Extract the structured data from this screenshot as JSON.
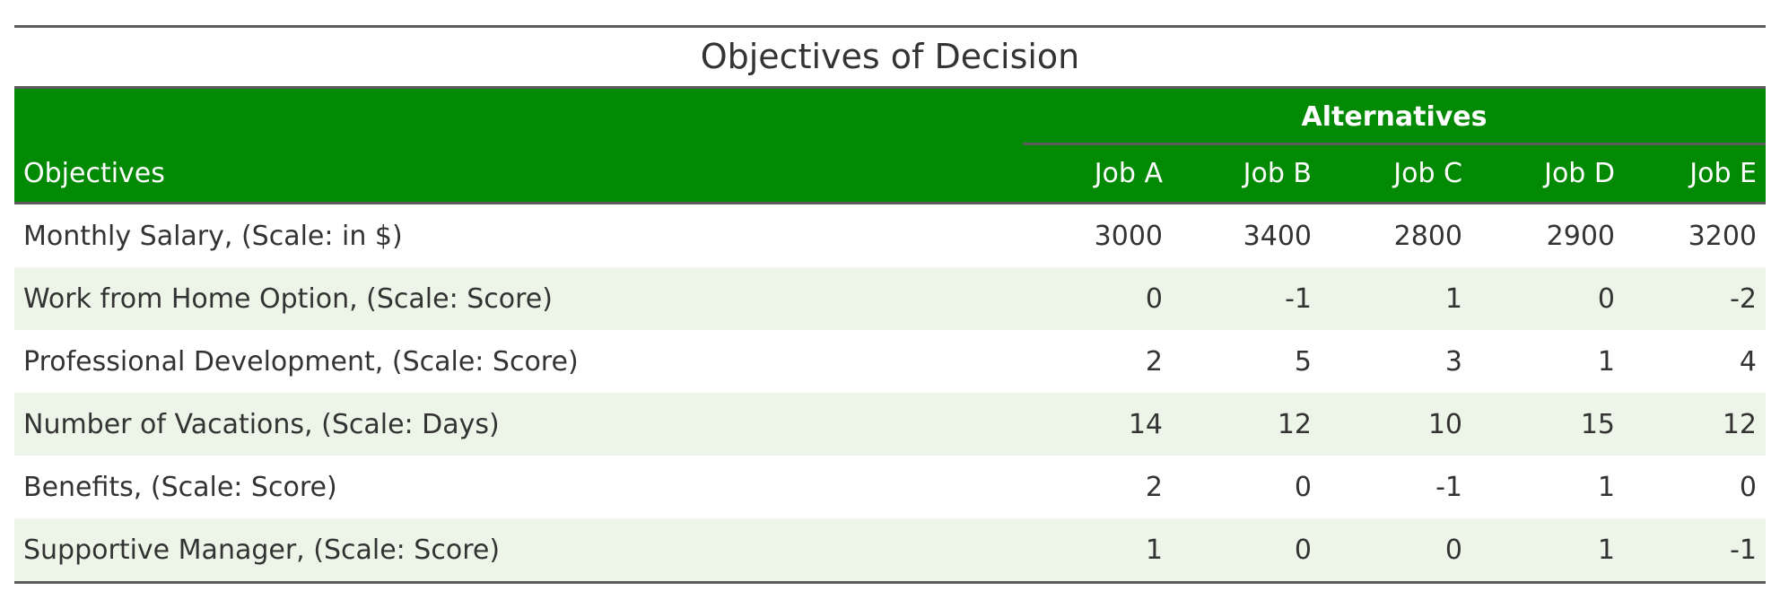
{
  "title": "Objectives of Decision",
  "spanner": "Alternatives",
  "columns": [
    "Objectives",
    "Job A",
    "Job B",
    "Job C",
    "Job D",
    "Job E"
  ],
  "rows": [
    {
      "objective": "Monthly Salary, (Scale: in $)",
      "values": [
        "3000",
        "3400",
        "2800",
        "2900",
        "3200"
      ]
    },
    {
      "objective": "Work from Home Option, (Scale: Score)",
      "values": [
        "0",
        "-1",
        "1",
        "0",
        "-2"
      ]
    },
    {
      "objective": "Professional Development, (Scale: Score)",
      "values": [
        "2",
        "5",
        "3",
        "1",
        "4"
      ]
    },
    {
      "objective": "Number of Vacations, (Scale: Days)",
      "values": [
        "14",
        "12",
        "10",
        "15",
        "12"
      ]
    },
    {
      "objective": "Benefits, (Scale: Score)",
      "values": [
        "2",
        "0",
        "-1",
        "1",
        "0"
      ]
    },
    {
      "objective": "Supportive Manager, (Scale: Score)",
      "values": [
        "1",
        "0",
        "0",
        "1",
        "-1"
      ]
    }
  ],
  "colors": {
    "header_bg": "#038a05",
    "stripe_bg": "#edf5e8",
    "rule": "#5c5c5c"
  }
}
